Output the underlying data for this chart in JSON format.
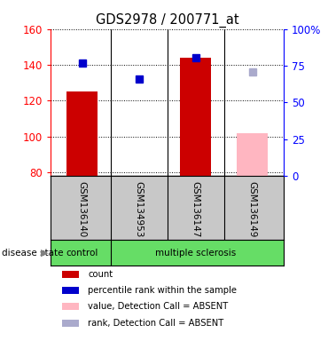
{
  "title": "GDS2978 / 200771_at",
  "samples": [
    "GSM136140",
    "GSM134953",
    "GSM136147",
    "GSM136149"
  ],
  "bar_values": [
    125,
    80,
    144,
    80
  ],
  "bar_present": [
    true,
    false,
    true,
    false
  ],
  "bar_absent_values": [
    null,
    null,
    null,
    102
  ],
  "rank_values": [
    141,
    132,
    144,
    null
  ],
  "rank_absent_values": [
    null,
    null,
    null,
    136
  ],
  "ylim_left": [
    78,
    160
  ],
  "ylim_right": [
    0,
    100
  ],
  "left_ticks": [
    80,
    100,
    120,
    140,
    160
  ],
  "right_ticks": [
    0,
    25,
    50,
    75,
    100
  ],
  "right_tick_labels": [
    "0",
    "25",
    "50",
    "75",
    "100%"
  ],
  "bar_width": 0.55,
  "background_color": "#ffffff",
  "label_area_color": "#c8c8c8",
  "disease_row_color": "#66dd66",
  "red_bar_color": "#cc0000",
  "pink_bar_color": "#ffb6c1",
  "blue_sq_color": "#0000cc",
  "lblue_sq_color": "#aaaacc",
  "legend_colors": [
    "#cc0000",
    "#0000cc",
    "#ffb6c1",
    "#aaaacc"
  ],
  "legend_labels": [
    "count",
    "percentile rank within the sample",
    "value, Detection Call = ABSENT",
    "rank, Detection Call = ABSENT"
  ]
}
